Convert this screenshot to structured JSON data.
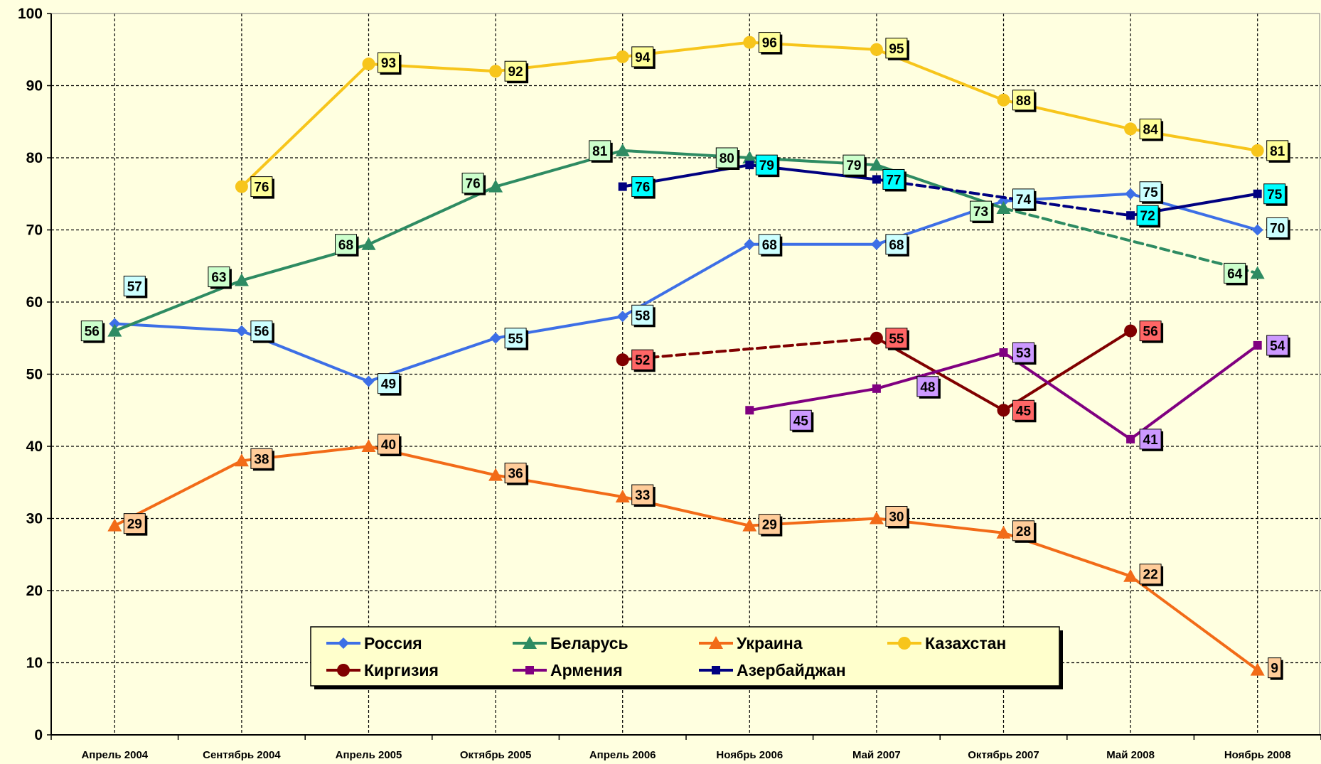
{
  "chart_data": {
    "type": "line",
    "title": "",
    "xlabel": "",
    "ylabel": "",
    "ylim": [
      0,
      100
    ],
    "yticks": [
      "0",
      "10",
      "20",
      "30",
      "40",
      "50",
      "60",
      "70",
      "80",
      "90",
      "100"
    ],
    "categories": [
      "Апрель 2004",
      "Сентябрь 2004",
      "Апрель 2005",
      "Октябрь 2005",
      "Апрель 2006",
      "Ноябрь 2006",
      "Май 2007",
      "Октябрь 2007",
      "Май 2008",
      "Ноябрь 2008"
    ],
    "grid": true,
    "legend_position": "bottom-center",
    "series": [
      {
        "name": "Россия",
        "color": "#3d6fe6",
        "marker": "diamond",
        "label_bg": "#ccffff",
        "values": [
          57,
          56,
          49,
          55,
          58,
          68,
          68,
          74,
          75,
          70
        ]
      },
      {
        "name": "Беларусь",
        "color": "#2e8b62",
        "marker": "triangle",
        "label_bg": "#ccffcc",
        "values": [
          56,
          63,
          68,
          76,
          81,
          80,
          79,
          73,
          null,
          64
        ]
      },
      {
        "name": "Украина",
        "color": "#f26b18",
        "marker": "triangle",
        "label_bg": "#ffcc99",
        "values": [
          29,
          38,
          40,
          36,
          33,
          29,
          30,
          28,
          22,
          9
        ]
      },
      {
        "name": "Казахстан",
        "color": "#f7c51b",
        "marker": "circle",
        "label_bg": "#ffff99",
        "values": [
          null,
          76,
          93,
          92,
          94,
          96,
          95,
          88,
          84,
          81
        ]
      },
      {
        "name": "Киргизия",
        "color": "#800000",
        "marker": "circle",
        "label_bg": "#ff6666",
        "values": [
          null,
          null,
          null,
          null,
          52,
          null,
          55,
          45,
          56,
          null
        ]
      },
      {
        "name": "Армения",
        "color": "#800080",
        "marker": "square",
        "label_bg": "#cc99ff",
        "values": [
          null,
          null,
          null,
          null,
          null,
          45,
          48,
          53,
          41,
          54
        ]
      },
      {
        "name": "Азербайджан",
        "color": "#000080",
        "marker": "square",
        "label_bg": "#00ffff",
        "values": [
          null,
          null,
          null,
          null,
          76,
          79,
          77,
          null,
          72,
          75
        ]
      }
    ],
    "annotations": {
      "Россия": [
        57,
        56,
        49,
        55,
        58,
        68,
        68,
        74,
        75,
        70
      ],
      "Беларусь": [
        56,
        63,
        68,
        76,
        81,
        80,
        79,
        73,
        64
      ],
      "Украина": [
        29,
        38,
        40,
        36,
        33,
        29,
        30,
        28,
        22,
        9
      ],
      "Казахстан": [
        76,
        93,
        92,
        94,
        96,
        95,
        88,
        84,
        81
      ],
      "Киргизия": [
        52,
        55,
        45,
        56
      ],
      "Армения": [
        45,
        48,
        53,
        41,
        54
      ],
      "Азербайджан": [
        76,
        79,
        77,
        72,
        75
      ]
    }
  }
}
